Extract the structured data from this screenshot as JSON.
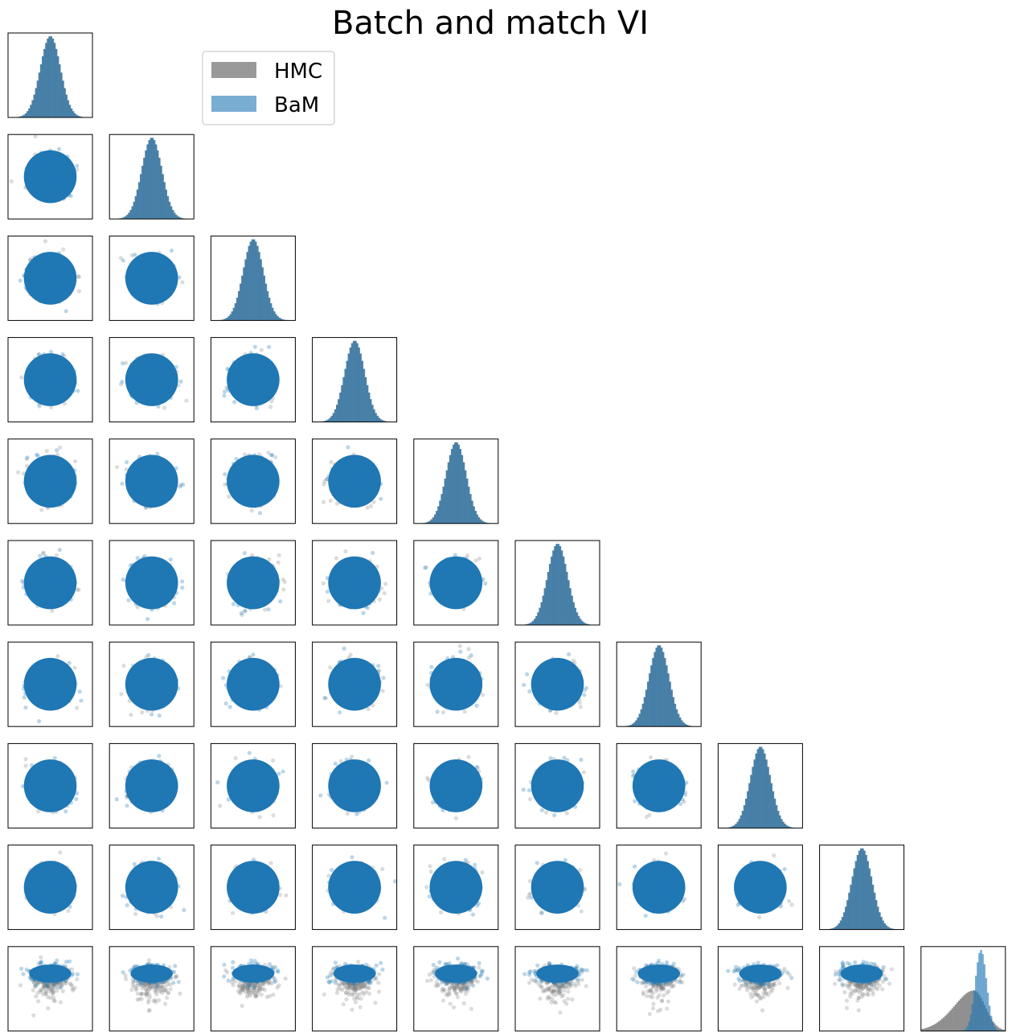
{
  "chart_data": {
    "type": "corner",
    "title": "Batch and match VI",
    "dimensions": 10,
    "legend": {
      "placement": "top-left",
      "entries": [
        {
          "label": "HMC",
          "color": "#999999"
        },
        {
          "label": "BaM",
          "color": "#1f77b4"
        }
      ]
    },
    "series": [
      {
        "name": "HMC",
        "color": "#999999",
        "marginal_mean": [
          0,
          0,
          0,
          0,
          0,
          0,
          0,
          0,
          0,
          -0.2
        ],
        "marginal_sd": [
          1,
          1,
          1,
          1,
          1,
          1,
          1,
          1,
          1,
          0.16
        ],
        "last_dim_skew": "left-skewed"
      },
      {
        "name": "BaM",
        "color": "#1f77b4",
        "marginal_mean": [
          0,
          0,
          0,
          0,
          0,
          0,
          0,
          0,
          0,
          -0.1
        ],
        "marginal_sd": [
          1,
          1,
          1,
          1,
          1,
          1,
          1,
          1,
          1,
          0.08
        ]
      }
    ],
    "xticks": false,
    "yticks": false,
    "grid": false
  }
}
